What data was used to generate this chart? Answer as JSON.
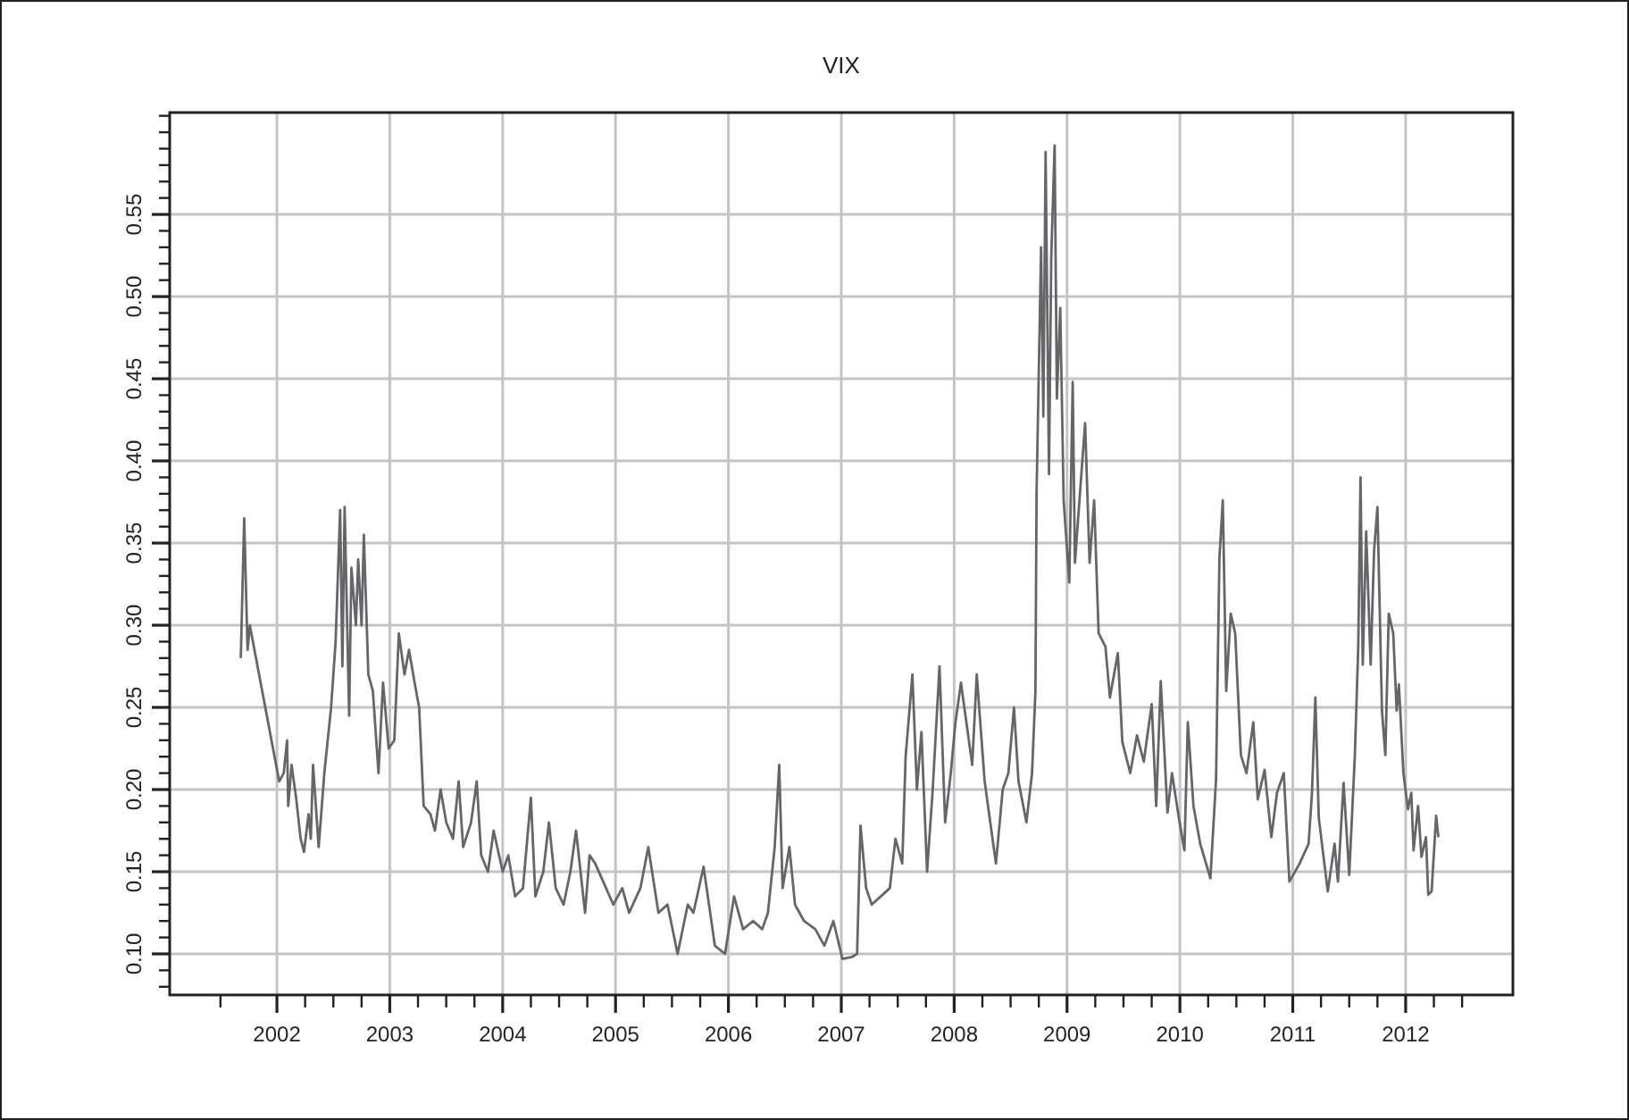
{
  "chart_data": {
    "type": "line",
    "title": "VIX",
    "x": [
      2001.68,
      2001.71,
      2001.74,
      2001.76,
      2002.02,
      2002.06,
      2002.09,
      2002.1,
      2002.13,
      2002.17,
      2002.21,
      2002.24,
      2002.28,
      2002.3,
      2002.32,
      2002.37,
      2002.42,
      2002.48,
      2002.52,
      2002.56,
      2002.58,
      2002.6,
      2002.64,
      2002.66,
      2002.7,
      2002.72,
      2002.75,
      2002.77,
      2002.81,
      2002.85,
      2002.9,
      2002.94,
      2002.99,
      2003.04,
      2003.08,
      2003.13,
      2003.17,
      2003.22,
      2003.26,
      2003.3,
      2003.36,
      2003.4,
      2003.45,
      2003.5,
      2003.56,
      2003.61,
      2003.65,
      2003.72,
      2003.77,
      2003.81,
      2003.87,
      2003.92,
      2004.0,
      2004.05,
      2004.11,
      2004.18,
      2004.25,
      2004.29,
      2004.36,
      2004.41,
      2004.47,
      2004.54,
      2004.6,
      2004.65,
      2004.73,
      2004.77,
      2004.82,
      2004.98,
      2005.06,
      2005.12,
      2005.22,
      2005.29,
      2005.38,
      2005.46,
      2005.55,
      2005.64,
      2005.69,
      2005.78,
      2005.88,
      2005.97,
      2006.05,
      2006.13,
      2006.22,
      2006.3,
      2006.35,
      2006.41,
      2006.45,
      2006.48,
      2006.54,
      2006.59,
      2006.67,
      2006.77,
      2006.85,
      2006.93,
      2007.01,
      2007.09,
      2007.14,
      2007.17,
      2007.22,
      2007.27,
      2007.35,
      2007.43,
      2007.48,
      2007.54,
      2007.57,
      2007.63,
      2007.67,
      2007.71,
      2007.76,
      2007.81,
      2007.87,
      2007.92,
      2007.97,
      2008.01,
      2008.06,
      2008.11,
      2008.16,
      2008.2,
      2008.27,
      2008.37,
      2008.43,
      2008.48,
      2008.53,
      2008.57,
      2008.64,
      2008.69,
      2008.72,
      2008.73,
      2008.77,
      2008.79,
      2008.81,
      2008.84,
      2008.86,
      2008.89,
      2008.91,
      2008.94,
      2008.97,
      2009.02,
      2009.05,
      2009.07,
      2009.11,
      2009.16,
      2009.2,
      2009.24,
      2009.28,
      2009.34,
      2009.38,
      2009.45,
      2009.49,
      2009.56,
      2009.62,
      2009.68,
      2009.75,
      2009.79,
      2009.83,
      2009.89,
      2009.93,
      2009.99,
      2010.04,
      2010.07,
      2010.12,
      2010.18,
      2010.27,
      2010.32,
      2010.35,
      2010.38,
      2010.41,
      2010.45,
      2010.49,
      2010.54,
      2010.59,
      2010.65,
      2010.69,
      2010.75,
      2010.81,
      2010.86,
      2010.92,
      2010.97,
      2011.06,
      2011.14,
      2011.17,
      2011.2,
      2011.23,
      2011.31,
      2011.37,
      2011.4,
      2011.45,
      2011.5,
      2011.55,
      2011.58,
      2011.6,
      2011.62,
      2011.65,
      2011.69,
      2011.72,
      2011.75,
      2011.79,
      2011.82,
      2011.85,
      2011.89,
      2011.92,
      2011.94,
      2011.98,
      2012.02,
      2012.05,
      2012.07,
      2012.11,
      2012.14,
      2012.18,
      2012.2,
      2012.23,
      2012.27,
      2012.29
    ],
    "series": [
      {
        "color": "#66666a",
        "values": [
          0.28,
          0.365,
          0.285,
          0.3,
          0.205,
          0.21,
          0.23,
          0.19,
          0.215,
          0.195,
          0.17,
          0.162,
          0.185,
          0.17,
          0.215,
          0.165,
          0.21,
          0.25,
          0.29,
          0.37,
          0.275,
          0.372,
          0.245,
          0.335,
          0.3,
          0.34,
          0.3,
          0.355,
          0.27,
          0.26,
          0.21,
          0.265,
          0.225,
          0.23,
          0.295,
          0.27,
          0.285,
          0.265,
          0.25,
          0.19,
          0.185,
          0.175,
          0.2,
          0.18,
          0.17,
          0.205,
          0.165,
          0.18,
          0.205,
          0.16,
          0.15,
          0.175,
          0.15,
          0.16,
          0.135,
          0.14,
          0.195,
          0.135,
          0.15,
          0.18,
          0.14,
          0.13,
          0.15,
          0.175,
          0.125,
          0.16,
          0.155,
          0.13,
          0.14,
          0.125,
          0.14,
          0.165,
          0.125,
          0.13,
          0.1,
          0.13,
          0.125,
          0.153,
          0.105,
          0.1,
          0.135,
          0.115,
          0.12,
          0.115,
          0.125,
          0.165,
          0.215,
          0.14,
          0.165,
          0.13,
          0.12,
          0.115,
          0.105,
          0.12,
          0.097,
          0.098,
          0.1,
          0.178,
          0.14,
          0.13,
          0.135,
          0.14,
          0.17,
          0.155,
          0.22,
          0.27,
          0.2,
          0.235,
          0.15,
          0.2,
          0.275,
          0.18,
          0.21,
          0.24,
          0.265,
          0.24,
          0.215,
          0.27,
          0.205,
          0.155,
          0.2,
          0.21,
          0.25,
          0.205,
          0.18,
          0.21,
          0.26,
          0.38,
          0.53,
          0.427,
          0.588,
          0.392,
          0.524,
          0.592,
          0.438,
          0.493,
          0.376,
          0.326,
          0.448,
          0.338,
          0.376,
          0.423,
          0.338,
          0.376,
          0.295,
          0.287,
          0.256,
          0.283,
          0.229,
          0.21,
          0.233,
          0.217,
          0.252,
          0.19,
          0.266,
          0.186,
          0.21,
          0.183,
          0.163,
          0.241,
          0.19,
          0.167,
          0.146,
          0.206,
          0.341,
          0.376,
          0.26,
          0.307,
          0.295,
          0.221,
          0.21,
          0.241,
          0.194,
          0.212,
          0.171,
          0.198,
          0.21,
          0.144,
          0.155,
          0.167,
          0.198,
          0.256,
          0.183,
          0.138,
          0.167,
          0.144,
          0.204,
          0.148,
          0.221,
          0.287,
          0.39,
          0.276,
          0.357,
          0.276,
          0.345,
          0.372,
          0.248,
          0.221,
          0.307,
          0.295,
          0.248,
          0.264,
          0.21,
          0.188,
          0.198,
          0.163,
          0.19,
          0.159,
          0.171,
          0.136,
          0.138,
          0.184,
          0.171
        ]
      }
    ],
    "xlim": [
      2001.05,
      2012.95
    ],
    "xticks": [
      {
        "value": 2001.5,
        "label": null
      },
      2002,
      {
        "value": 2002.25,
        "label": null
      },
      {
        "value": 2002.5,
        "label": null
      },
      {
        "value": 2002.75,
        "label": null
      },
      2003,
      {
        "value": 2003.25,
        "label": null
      },
      {
        "value": 2003.5,
        "label": null
      },
      {
        "value": 2003.75,
        "label": null
      },
      2004,
      {
        "value": 2004.25,
        "label": null
      },
      {
        "value": 2004.5,
        "label": null
      },
      {
        "value": 2004.75,
        "label": null
      },
      2005,
      {
        "value": 2005.25,
        "label": null
      },
      {
        "value": 2005.5,
        "label": null
      },
      {
        "value": 2005.75,
        "label": null
      },
      2006,
      {
        "value": 2006.25,
        "label": null
      },
      {
        "value": 2006.5,
        "label": null
      },
      {
        "value": 2006.75,
        "label": null
      },
      2007,
      {
        "value": 2007.25,
        "label": null
      },
      {
        "value": 2007.5,
        "label": null
      },
      {
        "value": 2007.75,
        "label": null
      },
      2008,
      {
        "value": 2008.25,
        "label": null
      },
      {
        "value": 2008.5,
        "label": null
      },
      {
        "value": 2008.75,
        "label": null
      },
      2009,
      {
        "value": 2009.25,
        "label": null
      },
      {
        "value": 2009.5,
        "label": null
      },
      {
        "value": 2009.75,
        "label": null
      },
      2010,
      {
        "value": 2010.25,
        "label": null
      },
      {
        "value": 2010.5,
        "label": null
      },
      {
        "value": 2010.75,
        "label": null
      },
      2011,
      {
        "value": 2011.25,
        "label": null
      },
      {
        "value": 2011.5,
        "label": null
      },
      {
        "value": 2011.75,
        "label": null
      },
      2012,
      {
        "value": 2012.25,
        "label": null
      },
      {
        "value": 2012.5,
        "label": null
      }
    ],
    "ylim": [
      0.075,
      0.612
    ],
    "yticks": [
      {
        "value": 0.08,
        "label": null
      },
      {
        "value": 0.09,
        "label": null
      },
      {
        "value": 0.1,
        "label": "0.10"
      },
      {
        "value": 0.11,
        "label": null
      },
      {
        "value": 0.12,
        "label": null
      },
      {
        "value": 0.13,
        "label": null
      },
      {
        "value": 0.14,
        "label": null
      },
      {
        "value": 0.15,
        "label": "0.15"
      },
      {
        "value": 0.16,
        "label": null
      },
      {
        "value": 0.17,
        "label": null
      },
      {
        "value": 0.18,
        "label": null
      },
      {
        "value": 0.19,
        "label": null
      },
      {
        "value": 0.2,
        "label": "0.20"
      },
      {
        "value": 0.21,
        "label": null
      },
      {
        "value": 0.22,
        "label": null
      },
      {
        "value": 0.23,
        "label": null
      },
      {
        "value": 0.24,
        "label": null
      },
      {
        "value": 0.25,
        "label": "0.25"
      },
      {
        "value": 0.26,
        "label": null
      },
      {
        "value": 0.27,
        "label": null
      },
      {
        "value": 0.28,
        "label": null
      },
      {
        "value": 0.29,
        "label": null
      },
      {
        "value": 0.3,
        "label": "0.30"
      },
      {
        "value": 0.31,
        "label": null
      },
      {
        "value": 0.32,
        "label": null
      },
      {
        "value": 0.33,
        "label": null
      },
      {
        "value": 0.34,
        "label": null
      },
      {
        "value": 0.35,
        "label": "0.35"
      },
      {
        "value": 0.36,
        "label": null
      },
      {
        "value": 0.37,
        "label": null
      },
      {
        "value": 0.38,
        "label": null
      },
      {
        "value": 0.39,
        "label": null
      },
      {
        "value": 0.4,
        "label": "0.40"
      },
      {
        "value": 0.41,
        "label": null
      },
      {
        "value": 0.42,
        "label": null
      },
      {
        "value": 0.43,
        "label": null
      },
      {
        "value": 0.44,
        "label": null
      },
      {
        "value": 0.45,
        "label": "0.45"
      },
      {
        "value": 0.46,
        "label": null
      },
      {
        "value": 0.47,
        "label": null
      },
      {
        "value": 0.48,
        "label": null
      },
      {
        "value": 0.49,
        "label": null
      },
      {
        "value": 0.5,
        "label": "0.50"
      },
      {
        "value": 0.51,
        "label": null
      },
      {
        "value": 0.52,
        "label": null
      },
      {
        "value": 0.53,
        "label": null
      },
      {
        "value": 0.54,
        "label": null
      },
      {
        "value": 0.55,
        "label": "0.55"
      },
      {
        "value": 0.56,
        "label": null
      },
      {
        "value": 0.57,
        "label": null
      },
      {
        "value": 0.58,
        "label": null
      },
      {
        "value": 0.59,
        "label": null
      },
      {
        "value": 0.6,
        "label": null
      },
      {
        "value": 0.61,
        "label": null
      }
    ],
    "grid": true,
    "marker": "none",
    "line_style": "solid"
  }
}
